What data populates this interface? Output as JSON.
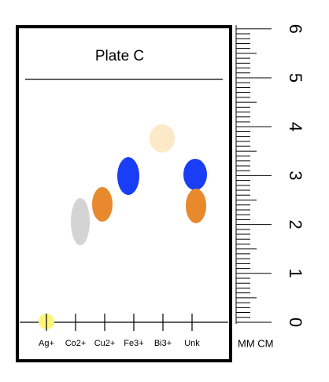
{
  "title": "Plate C",
  "lanes": [
    "Ag+",
    "Co2+",
    "Cu2+",
    "Fe3+",
    "Bi3+",
    "Unk"
  ],
  "ruler": {
    "labels": [
      "0",
      "1",
      "2",
      "3",
      "4",
      "5",
      "6"
    ],
    "units": "MM CM"
  }
}
